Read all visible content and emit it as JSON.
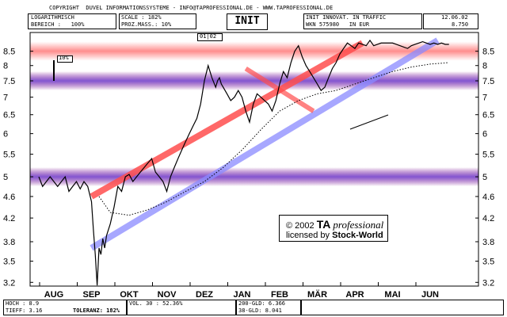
{
  "header": {
    "copyright": "COPYRIGHT  DUVEL INFORMATIONSSYSTEME - INFO@TAPROFESSIONAL.DE - WWW.TAPROFESSIONAL.DE",
    "scale_type": "LOGARITHMISCH",
    "bereich": "BEREICH :   100%",
    "scale": "SCALE : 182%",
    "proz_mass": "PROZ.MASS.: 10%",
    "symbol": "INIT",
    "title": "INIT INNOVAT. IN TRAFFIC",
    "date": "12.06.02",
    "wkn": "WKN 575980   IN EUR",
    "last_price": "8.750",
    "period": "01|02",
    "indicator_label": "10%"
  },
  "footer": {
    "hoch": "HOCH : 8.9",
    "tief": "TIEFF: 3.16",
    "toleranz": "TOLERANZ: 182%",
    "vol": "VOL. 30 : 52.36%",
    "gld200": "200-GLD: 6.366",
    "gld38": "38-GLD: 8.041"
  },
  "watermark": {
    "line1_prefix": "© 2002",
    "line1_brand": "TA",
    "line1_suffix": "professional",
    "line2_prefix": "licensed by",
    "line2_brand": "Stock-World"
  },
  "colors": {
    "price": "#000000",
    "resistance": "#ff0000",
    "support": "#0000ff",
    "resistance_trend": "#ff4d4d",
    "support_trend": "#8a8aff"
  },
  "chart_data": {
    "type": "line",
    "title": "INIT INNOVAT. IN TRAFFIC",
    "scale": "log",
    "ylim": [
      3.15,
      9.2
    ],
    "y_ticks": [
      3.2,
      3.5,
      3.8,
      4.2,
      4.6,
      5,
      5.5,
      6,
      6.5,
      7,
      7.5,
      8,
      8.5
    ],
    "months": [
      "AUG",
      "SEP",
      "OKT",
      "NOV",
      "DEZ",
      "JAN",
      "FEB",
      "MÄR",
      "APR",
      "MAI",
      "JUN"
    ],
    "month_index": [
      0,
      1,
      2,
      3,
      4,
      5,
      6,
      7,
      8,
      9,
      10
    ],
    "price_x": [
      -0.4,
      -0.3,
      -0.2,
      -0.1,
      0,
      0.1,
      0.2,
      0.3,
      0.4,
      0.5,
      0.6,
      0.7,
      0.8,
      0.9,
      1,
      1.05,
      1.1,
      1.15,
      1.2,
      1.25,
      1.3,
      1.35,
      1.4,
      1.5,
      1.6,
      1.7,
      1.8,
      1.9,
      2,
      2.1,
      2.2,
      2.3,
      2.4,
      2.5,
      2.6,
      2.7,
      2.8,
      2.9,
      3,
      3.1,
      3.2,
      3.3,
      3.4,
      3.5,
      3.6,
      3.7,
      3.8,
      3.9,
      4,
      4.1,
      4.2,
      4.3,
      4.35,
      4.4,
      4.45,
      4.5,
      4.6,
      4.7,
      4.8,
      4.9,
      5,
      5.1,
      5.2,
      5.3,
      5.4,
      5.5,
      5.6,
      5.7,
      5.8,
      5.9,
      6,
      6.1,
      6.2,
      6.3,
      6.4,
      6.5,
      6.6,
      6.7,
      6.8,
      6.9,
      7,
      7.1,
      7.2,
      7.3,
      7.4,
      7.5,
      7.6,
      7.7,
      7.8,
      7.9,
      8,
      8.1,
      8.2,
      8.3,
      8.4,
      8.5,
      8.6,
      8.7,
      8.8,
      8.9,
      9,
      9.1,
      9.2,
      9.3,
      9.4,
      9.5,
      9.6,
      9.7,
      9.8,
      9.9,
      10,
      10.1,
      10.2,
      10.3,
      10.4,
      10.5
    ],
    "price_y": [
      5.0,
      4.8,
      4.9,
      5.0,
      4.9,
      4.8,
      4.9,
      5.0,
      4.7,
      4.8,
      4.9,
      4.75,
      4.9,
      4.8,
      4.5,
      4.0,
      3.6,
      3.16,
      3.7,
      3.6,
      3.85,
      3.7,
      3.9,
      4.1,
      4.4,
      4.8,
      4.7,
      5.0,
      5.05,
      4.9,
      5.0,
      5.1,
      5.2,
      5.3,
      5.4,
      5.1,
      5.0,
      4.9,
      4.7,
      5.0,
      5.2,
      5.4,
      5.6,
      5.8,
      6.0,
      6.2,
      6.4,
      6.8,
      7.5,
      8.0,
      7.6,
      7.3,
      7.5,
      7.6,
      7.4,
      7.3,
      7.1,
      6.9,
      7.0,
      7.2,
      7.0,
      6.6,
      6.3,
      6.8,
      7.1,
      7.0,
      6.9,
      6.8,
      6.6,
      6.9,
      7.4,
      7.8,
      7.6,
      8.1,
      8.5,
      8.7,
      8.3,
      8.0,
      7.8,
      7.6,
      7.4,
      7.2,
      7.3,
      7.6,
      7.9,
      8.1,
      8.4,
      8.6,
      8.8,
      8.7,
      8.6,
      8.8,
      8.75,
      8.7,
      8.9,
      8.7,
      8.75,
      8.8,
      8.8,
      8.8,
      8.8,
      8.75,
      8.7,
      8.65,
      8.6,
      8.7,
      8.75,
      8.8,
      8.85,
      8.8,
      8.75,
      8.8,
      8.75,
      8.8,
      8.75,
      8.75
    ],
    "moving_average": {
      "x": [
        1.2,
        1.5,
        2.0,
        2.5,
        3.0,
        3.5,
        4.0,
        4.5,
        5.0,
        5.5,
        6.0,
        6.5,
        7.0,
        7.5,
        8.0,
        8.5,
        9.0,
        9.5,
        10.0,
        10.5
      ],
      "y": [
        4.6,
        4.3,
        4.25,
        4.35,
        4.5,
        4.7,
        4.9,
        5.2,
        5.6,
        6.1,
        6.6,
        6.9,
        7.1,
        7.2,
        7.4,
        7.6,
        7.8,
        7.95,
        8.05,
        8.1
      ]
    },
    "horizontal_zones": {
      "resistance": [
        8.5,
        7.5,
        5.0
      ],
      "support": [
        7.5,
        5.0
      ]
    },
    "trend_channels": {
      "upper": {
        "x": [
          1.0,
          8.2
        ],
        "y": [
          4.6,
          8.8
        ]
      },
      "lower": {
        "x": [
          1.0,
          10.2
        ],
        "y": [
          3.7,
          8.9
        ]
      }
    },
    "resistance_segment": {
      "x": [
        5.1,
        6.9
      ],
      "y": [
        7.9,
        6.6
      ]
    }
  }
}
